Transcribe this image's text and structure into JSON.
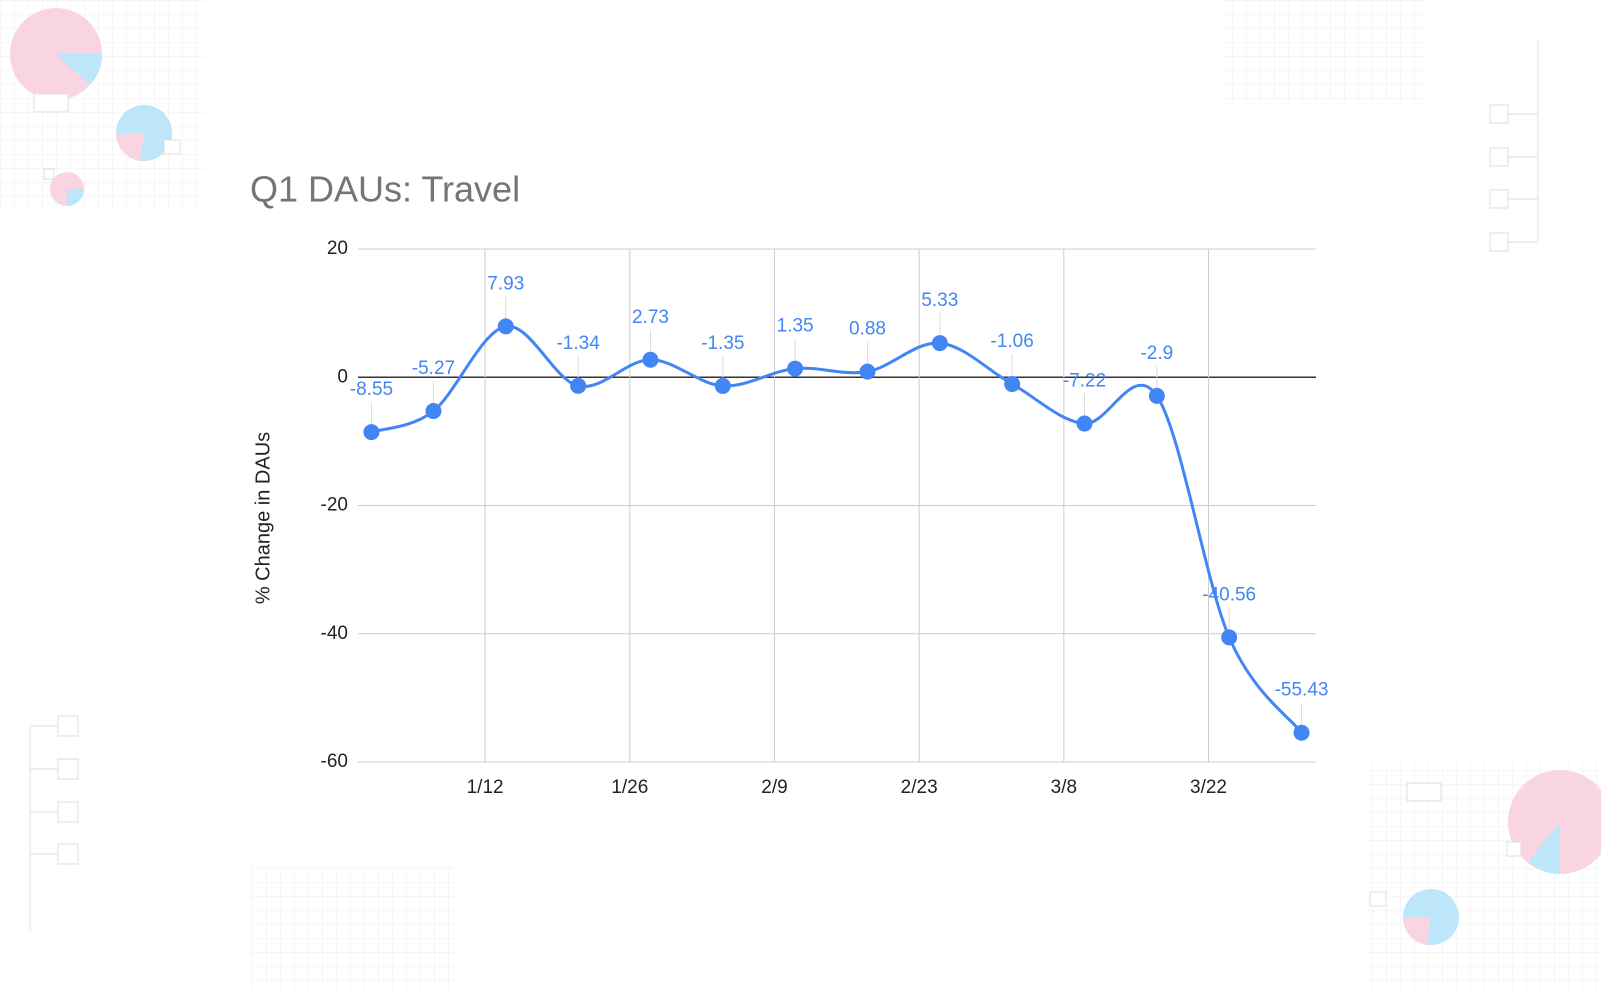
{
  "chart_data": {
    "type": "line",
    "title": "Q1 DAUs: Travel",
    "y_label": "% Change in DAUs",
    "x": [
      1,
      7,
      14,
      21,
      28,
      35,
      42,
      49,
      56,
      63,
      70,
      77,
      84,
      91
    ],
    "series": [
      {
        "color": "#4285f4",
        "values": [
          -8.55,
          -5.27,
          7.93,
          -1.34,
          2.73,
          -1.35,
          1.35,
          0.88,
          5.33,
          -1.06,
          -7.22,
          -2.9,
          -40.56,
          -55.43
        ]
      }
    ],
    "xlim": [
      -0.3,
      92.4
    ],
    "xticks": [
      {
        "value": 12,
        "label": "1/12"
      },
      {
        "value": 26,
        "label": "1/26"
      },
      {
        "value": 40,
        "label": "2/9"
      },
      {
        "value": 54,
        "label": "2/23"
      },
      {
        "value": 68,
        "label": "3/8"
      },
      {
        "value": 82,
        "label": "3/22"
      }
    ],
    "ylim": [
      -60,
      20
    ],
    "yticks": [
      -60,
      -40,
      -20,
      0,
      20
    ],
    "grid": true
  }
}
